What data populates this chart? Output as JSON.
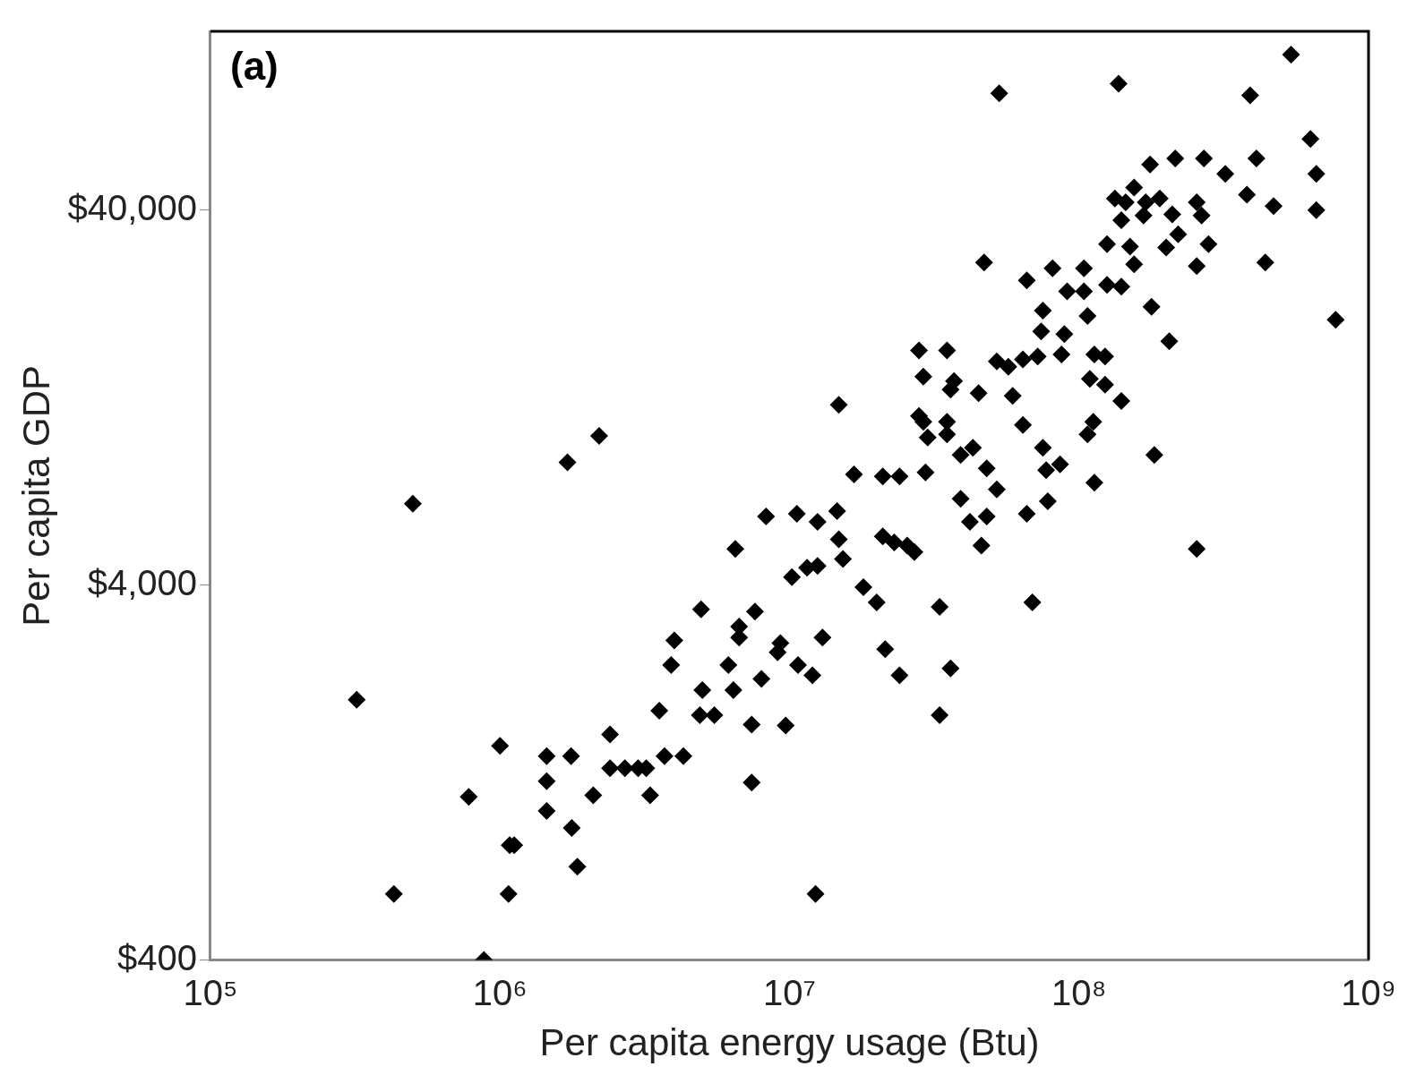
{
  "chart_data": {
    "type": "scatter",
    "xlabel": "Per capita energy usage (Btu)",
    "ylabel": "Per capita GDP",
    "log": "xy",
    "grid": false,
    "legend": false,
    "marker": "diamond",
    "annotations": [
      "(a)"
    ],
    "xlim": [
      100000,
      1000000000
    ],
    "xticks": [
      {
        "value": 100000,
        "label": "10⁵"
      },
      {
        "value": 1000000,
        "label": "10⁶"
      },
      {
        "value": 10000000,
        "label": "10⁷"
      },
      {
        "value": 100000000,
        "label": "10⁸"
      },
      {
        "value": 1000000000,
        "label": "10⁹"
      }
    ],
    "ylim": [
      400,
      120000
    ],
    "yticks": [
      {
        "value": 400,
        "label": "$400"
      },
      {
        "value": 4000,
        "label": "$4,000"
      },
      {
        "value": 40000,
        "label": "$40,000"
      }
    ],
    "series": [
      {
        "color": "#000000",
        "x": [
          540000000.0,
          137000000.0,
          53000000.0,
          390000000.0,
          630000000.0,
          270000000.0,
          410000000.0,
          660000000.0,
          320000000.0,
          176000000.0,
          215000000.0,
          380000000.0,
          470000000.0,
          660000000.0,
          770000000.0,
          440000000.0,
          133000000.0,
          155000000.0,
          145000000.0,
          170000000.0,
          190000000.0,
          140000000.0,
          167000000.0,
          210000000.0,
          255000000.0,
          265000000.0,
          220000000.0,
          280000000.0,
          255000000.0,
          200000000.0,
          150000000.0,
          125000000.0,
          155000000.0,
          125000000.0,
          140000000.0,
          178000000.0,
          205000000.0,
          104000000.0,
          104000000.0,
          81000000.0,
          66000000.0,
          47000000.0,
          75000000.0,
          91000000.0,
          107000000.0,
          74000000.0,
          89000000.0,
          35000000.0,
          28000000.0,
          29000000.0,
          37000000.0,
          36000000.0,
          45000000.0,
          52000000.0,
          57000000.0,
          64000000.0,
          72000000.0,
          87000000.0,
          113000000.0,
          123000000.0,
          109000000.0,
          123000000.0,
          140000000.0,
          112000000.0,
          107000000.0,
          59000000.0,
          64000000.0,
          75000000.0,
          86000000.0,
          77000000.0,
          113000000.0,
          182000000.0,
          66000000.0,
          78000000.0,
          255000000.0,
          69000000.0,
          33000000.0,
          36000000.0,
          33000000.0,
          48000000.0,
          46000000.0,
          42000000.0,
          39000000.0,
          43000000.0,
          48000000.0,
          52000000.0,
          29000000.0,
          30000000.0,
          29500000.0,
          35000000.0,
          35000000.0,
          39000000.0,
          24000000.0,
          21000000.0,
          16700000.0,
          14800000.0,
          28000000.0,
          14600000.0,
          12500000.0,
          10600000.0,
          8300000.0,
          6500000.0,
          14800000.0,
          15300000.0,
          21000000.0,
          23000000.0,
          25500000.0,
          27000000.0,
          18000000.0,
          20000000.0,
          21400000.0,
          24000000.0,
          10200000.0,
          11500000.0,
          12500000.0,
          13000000.0,
          10700000.0,
          12000000.0,
          9100000.0,
          9300000.0,
          8000000.0,
          7600000.0,
          6700000.0,
          6700000.0,
          6150000.0,
          6400000.0,
          5000000.0,
          4950000.0,
          4000000.0,
          3900000.0,
          4900000.0,
          5500000.0,
          3550000.0,
          4300000.0,
          3700000.0,
          3200000.0,
          3000000.0,
          2700000.0,
          2400000.0,
          3300000.0,
          2400000.0,
          2100000.0,
          1760000.0,
          1450000.0,
          1450000.0,
          1450000.0,
          1770000.0,
          1850000.0,
          1080000.0,
          1120000.0,
          1070000.0,
          430000.0,
          780000.0,
          1000000.0,
          880000.0,
          320000.0,
          500000.0,
          1710000.0,
          2200000.0,
          12300000.0,
          7400000.0,
          9700000.0,
          7400000.0
        ],
        "values": [
          104000,
          87000,
          82000,
          81000,
          62000,
          55000,
          55000,
          50000,
          50000,
          53000,
          55000,
          44000,
          41000,
          40000,
          20400,
          29000,
          43000,
          46000,
          42000,
          42000,
          43000,
          37600,
          38700,
          39000,
          42000,
          38700,
          34500,
          32500,
          28400,
          31800,
          32000,
          32500,
          28700,
          25300,
          25000,
          22100,
          17900,
          28000,
          24300,
          28000,
          26000,
          29000,
          21600,
          24300,
          20900,
          19000,
          18700,
          16900,
          16900,
          14400,
          14000,
          13300,
          13000,
          15800,
          15300,
          16000,
          16300,
          16500,
          16500,
          16300,
          14200,
          13700,
          12400,
          10900,
          10100,
          12800,
          10700,
          9300,
          8400,
          8100,
          7500,
          8900,
          6200,
          6700,
          5000,
          3600,
          3500,
          2400,
          1800,
          6100,
          5100,
          5900,
          6800,
          9300,
          8200,
          7200,
          10900,
          9900,
          8000,
          10900,
          10100,
          8900,
          7800,
          7800,
          7900,
          12100,
          11300,
          6300,
          5900,
          6200,
          6100,
          5000,
          5300,
          4700,
          5400,
          5200,
          5100,
          4900,
          3950,
          3600,
          2700,
          2300,
          4200,
          4450,
          4500,
          2900,
          2450,
          2300,
          2650,
          2800,
          2250,
          3400,
          3100,
          2900,
          2450,
          2100,
          2100,
          3450,
          2850,
          2450,
          1800,
          1800,
          1850,
          1400,
          1400,
          1300,
          1300,
          1300,
          1300,
          1100,
          1600,
          1100,
          1400,
          1400,
          1200,
          1000,
          900,
          710,
          810,
          810,
          600,
          600,
          1090,
          1490,
          400,
          1980,
          6600,
          8500,
          10000,
          600,
          1190,
          1690,
          1700
        ]
      }
    ]
  }
}
